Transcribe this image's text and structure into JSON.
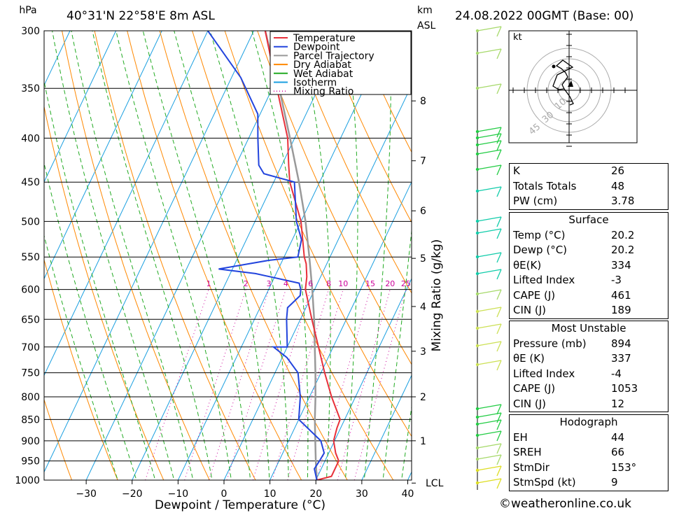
{
  "header": {
    "location": "40°31'N 22°58'E 8m ASL",
    "pressure_unit": "hPa",
    "height_unit": "km",
    "height_ref": "ASL",
    "datetime": "24.08.2022 00GMT (Base: 00)"
  },
  "chart_data": {
    "type": "skew-t",
    "title": "40°31'N 22°58'E 8m ASL",
    "xlabel": "Dewpoint / Temperature (°C)",
    "ylabel_right": "Mixing Ratio (g/kg)",
    "x_ticks": [
      -30,
      -20,
      -10,
      0,
      10,
      20,
      30,
      40
    ],
    "x_range_at_1000hPa": [
      -40,
      40
    ],
    "y_ticks_hpa": [
      300,
      350,
      400,
      450,
      500,
      550,
      600,
      650,
      700,
      750,
      800,
      850,
      900,
      950,
      1000
    ],
    "y_range_hpa": [
      1000,
      300
    ],
    "height_ticks": [
      {
        "km": "8",
        "p": 362
      },
      {
        "km": "7",
        "p": 425
      },
      {
        "km": "6",
        "p": 486
      },
      {
        "km": "5",
        "p": 552
      },
      {
        "km": "4",
        "p": 628
      },
      {
        "km": "3",
        "p": 708
      },
      {
        "km": "2",
        "p": 800
      },
      {
        "km": "1",
        "p": 900
      },
      {
        "km": "LCL",
        "p": 1008
      }
    ],
    "mixing_ratio_labels": [
      "1",
      "2",
      "3",
      "4",
      "6",
      "8",
      "10",
      "15",
      "20",
      "25"
    ],
    "legend": [
      "Temperature",
      "Dewpoint",
      "Parcel Trajectory",
      "Dry Adiabat",
      "Wet Adiabat",
      "Isotherm",
      "Mixing Ratio"
    ],
    "legend_position": "top-right",
    "colors": {
      "temperature": "#e8303a",
      "dewpoint": "#2244dd",
      "parcel": "#999999",
      "dry_adiabat": "#ff8800",
      "wet_adiabat": "#22aa22",
      "isotherm": "#1a9fe0",
      "mixing_ratio": "#cc0099"
    },
    "series": [
      {
        "name": "Temperature",
        "points": [
          [
            1000,
            20.2
          ],
          [
            990,
            23.0
          ],
          [
            950,
            23.0
          ],
          [
            930,
            21.5
          ],
          [
            900,
            19.8
          ],
          [
            870,
            19.2
          ],
          [
            850,
            19.0
          ],
          [
            800,
            14.8
          ],
          [
            750,
            10.8
          ],
          [
            700,
            6.8
          ],
          [
            650,
            2.5
          ],
          [
            600,
            -2.0
          ],
          [
            580,
            -3.0
          ],
          [
            560,
            -4.5
          ],
          [
            550,
            -5.6
          ],
          [
            500,
            -10.0
          ],
          [
            450,
            -16.5
          ],
          [
            430,
            -18.5
          ],
          [
            400,
            -21.5
          ],
          [
            350,
            -29.0
          ],
          [
            300,
            -37.5
          ]
        ]
      },
      {
        "name": "Dewpoint",
        "points": [
          [
            1000,
            20.2
          ],
          [
            970,
            18.5
          ],
          [
            950,
            18.8
          ],
          [
            930,
            19.0
          ],
          [
            900,
            17.0
          ],
          [
            850,
            10.0
          ],
          [
            800,
            8.0
          ],
          [
            750,
            5.0
          ],
          [
            720,
            1.0
          ],
          [
            700,
            -3.0
          ],
          [
            700,
            0.0
          ],
          [
            650,
            -3.0
          ],
          [
            630,
            -4.0
          ],
          [
            610,
            -2.5
          ],
          [
            600,
            -3.0
          ],
          [
            590,
            -4.0
          ],
          [
            575,
            -14.5
          ],
          [
            568,
            -23.0
          ],
          [
            555,
            -13.0
          ],
          [
            550,
            -7.0
          ],
          [
            525,
            -8.0
          ],
          [
            500,
            -11.0
          ],
          [
            450,
            -15.5
          ],
          [
            440,
            -23.0
          ],
          [
            430,
            -25.0
          ],
          [
            400,
            -28.0
          ],
          [
            375,
            -30.5
          ],
          [
            340,
            -38.0
          ],
          [
            300,
            -50.0
          ]
        ]
      },
      {
        "name": "Parcel Trajectory",
        "points": [
          [
            1000,
            20.2
          ],
          [
            950,
            18.0
          ],
          [
            900,
            15.8
          ],
          [
            850,
            13.5
          ],
          [
            800,
            11.3
          ],
          [
            750,
            8.8
          ],
          [
            700,
            6.0
          ],
          [
            650,
            3.0
          ],
          [
            600,
            -0.5
          ],
          [
            550,
            -4.5
          ],
          [
            500,
            -9.0
          ],
          [
            450,
            -14.5
          ],
          [
            400,
            -21.0
          ],
          [
            350,
            -28.5
          ],
          [
            300,
            -37.5
          ]
        ]
      }
    ],
    "hodograph": {
      "unit": "kt",
      "ring_labels": [
        "10",
        "30",
        "45"
      ]
    }
  },
  "indices": {
    "general": [
      {
        "label": "K",
        "value": "26"
      },
      {
        "label": "Totals Totals",
        "value": "48"
      },
      {
        "label": "PW (cm)",
        "value": "3.78"
      }
    ],
    "surface": {
      "title": "Surface",
      "rows": [
        {
          "label": "Temp (°C)",
          "value": "20.2"
        },
        {
          "label": "Dewp (°C)",
          "value": "20.2"
        },
        {
          "label": "θE(K)",
          "value": "334"
        },
        {
          "label": "Lifted Index",
          "value": "-3"
        },
        {
          "label": "CAPE (J)",
          "value": "461"
        },
        {
          "label": "CIN (J)",
          "value": "189"
        }
      ]
    },
    "most_unstable": {
      "title": "Most Unstable",
      "rows": [
        {
          "label": "Pressure (mb)",
          "value": "894"
        },
        {
          "label": "θE (K)",
          "value": "337"
        },
        {
          "label": "Lifted Index",
          "value": "-4"
        },
        {
          "label": "CAPE (J)",
          "value": "1053"
        },
        {
          "label": "CIN (J)",
          "value": "12"
        }
      ]
    },
    "hodograph": {
      "title": "Hodograph",
      "rows": [
        {
          "label": "EH",
          "value": "44"
        },
        {
          "label": "SREH",
          "value": "66"
        },
        {
          "label": "StmDir",
          "value": "153°"
        },
        {
          "label": "StmSpd (kt)",
          "value": "9"
        }
      ]
    }
  },
  "credit": "©weatheronline.co.uk"
}
